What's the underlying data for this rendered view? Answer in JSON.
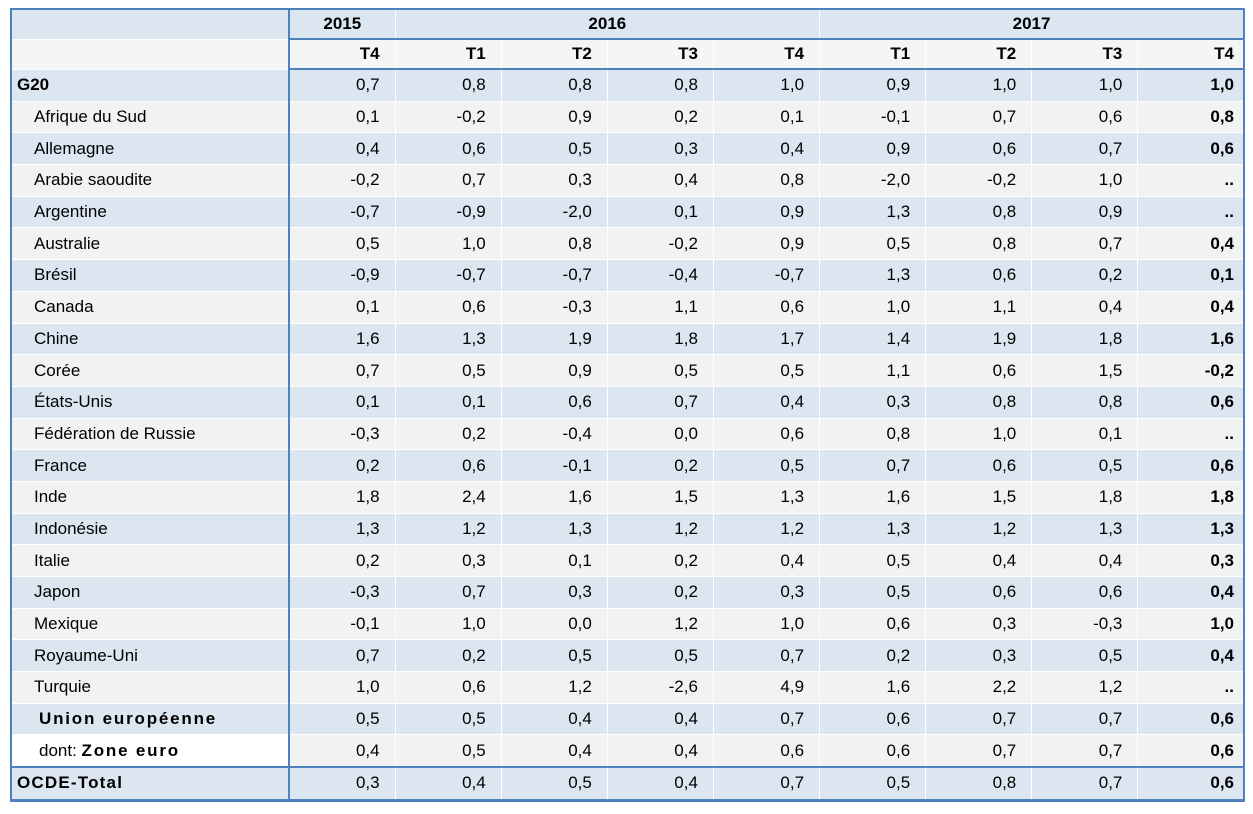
{
  "colors": {
    "table_border": "#4f81bd",
    "row_blue": "#dce6f1",
    "row_light": "#f2f2f2",
    "quarter_header_bg": "#f5f5f6",
    "special_label_bg": "#ffffff",
    "text": "#000000"
  },
  "chart_data": {
    "type": "table",
    "title": "",
    "missing_marker": "..",
    "decimal_separator": ",",
    "year_groups": [
      {
        "label": "2015",
        "span": 1
      },
      {
        "label": "2016",
        "span": 4
      },
      {
        "label": "2017",
        "span": 4
      }
    ],
    "quarters": [
      "T4",
      "T1",
      "T2",
      "T3",
      "T4",
      "T1",
      "T2",
      "T3",
      "T4"
    ],
    "last_column_bold": true,
    "rows": [
      {
        "label": "G20",
        "style": "group",
        "values": [
          "0,7",
          "0,8",
          "0,8",
          "0,8",
          "1,0",
          "0,9",
          "1,0",
          "1,0",
          "1,0"
        ]
      },
      {
        "label": "Afrique du Sud",
        "style": "country",
        "values": [
          "0,1",
          "-0,2",
          "0,9",
          "0,2",
          "0,1",
          "-0,1",
          "0,7",
          "0,6",
          "0,8"
        ]
      },
      {
        "label": "Allemagne",
        "style": "country",
        "values": [
          "0,4",
          "0,6",
          "0,5",
          "0,3",
          "0,4",
          "0,9",
          "0,6",
          "0,7",
          "0,6"
        ]
      },
      {
        "label": "Arabie saoudite",
        "style": "country",
        "values": [
          "-0,2",
          "0,7",
          "0,3",
          "0,4",
          "0,8",
          "-2,0",
          "-0,2",
          "1,0",
          ".."
        ]
      },
      {
        "label": "Argentine",
        "style": "country",
        "values": [
          "-0,7",
          "-0,9",
          "-2,0",
          "0,1",
          "0,9",
          "1,3",
          "0,8",
          "0,9",
          ".."
        ]
      },
      {
        "label": "Australie",
        "style": "country",
        "values": [
          "0,5",
          "1,0",
          "0,8",
          "-0,2",
          "0,9",
          "0,5",
          "0,8",
          "0,7",
          "0,4"
        ]
      },
      {
        "label": "Brésil",
        "style": "country",
        "values": [
          "-0,9",
          "-0,7",
          "-0,7",
          "-0,4",
          "-0,7",
          "1,3",
          "0,6",
          "0,2",
          "0,1"
        ]
      },
      {
        "label": "Canada",
        "style": "country",
        "values": [
          "0,1",
          "0,6",
          "-0,3",
          "1,1",
          "0,6",
          "1,0",
          "1,1",
          "0,4",
          "0,4"
        ]
      },
      {
        "label": "Chine",
        "style": "country",
        "values": [
          "1,6",
          "1,3",
          "1,9",
          "1,8",
          "1,7",
          "1,4",
          "1,9",
          "1,8",
          "1,6"
        ]
      },
      {
        "label": "Corée",
        "style": "country",
        "values": [
          "0,7",
          "0,5",
          "0,9",
          "0,5",
          "0,5",
          "1,1",
          "0,6",
          "1,5",
          "-0,2"
        ]
      },
      {
        "label": "États-Unis",
        "style": "country",
        "values": [
          "0,1",
          "0,1",
          "0,6",
          "0,7",
          "0,4",
          "0,3",
          "0,8",
          "0,8",
          "0,6"
        ]
      },
      {
        "label": "Fédération de Russie",
        "style": "country",
        "values": [
          "-0,3",
          "0,2",
          "-0,4",
          "0,0",
          "0,6",
          "0,8",
          "1,0",
          "0,1",
          ".."
        ]
      },
      {
        "label": "France",
        "style": "country",
        "values": [
          "0,2",
          "0,6",
          "-0,1",
          "0,2",
          "0,5",
          "0,7",
          "0,6",
          "0,5",
          "0,6"
        ]
      },
      {
        "label": "Inde",
        "style": "country",
        "values": [
          "1,8",
          "2,4",
          "1,6",
          "1,5",
          "1,3",
          "1,6",
          "1,5",
          "1,8",
          "1,8"
        ]
      },
      {
        "label": "Indonésie",
        "style": "country",
        "values": [
          "1,3",
          "1,2",
          "1,3",
          "1,2",
          "1,2",
          "1,3",
          "1,2",
          "1,3",
          "1,3"
        ]
      },
      {
        "label": "Italie",
        "style": "country",
        "values": [
          "0,2",
          "0,3",
          "0,1",
          "0,2",
          "0,4",
          "0,5",
          "0,4",
          "0,4",
          "0,3"
        ]
      },
      {
        "label": "Japon",
        "style": "country",
        "values": [
          "-0,3",
          "0,7",
          "0,3",
          "0,2",
          "0,3",
          "0,5",
          "0,6",
          "0,6",
          "0,4"
        ]
      },
      {
        "label": "Mexique",
        "style": "country",
        "values": [
          "-0,1",
          "1,0",
          "0,0",
          "1,2",
          "1,0",
          "0,6",
          "0,3",
          "-0,3",
          "1,0"
        ]
      },
      {
        "label": "Royaume-Uni",
        "style": "country",
        "values": [
          "0,7",
          "0,2",
          "0,5",
          "0,5",
          "0,7",
          "0,2",
          "0,3",
          "0,5",
          "0,4"
        ]
      },
      {
        "label": "Turquie",
        "style": "country",
        "values": [
          "1,0",
          "0,6",
          "1,2",
          "-2,6",
          "4,9",
          "1,6",
          "2,2",
          "1,2",
          ".."
        ]
      },
      {
        "label": "Union européenne",
        "style": "eu",
        "values": [
          "0,5",
          "0,5",
          "0,4",
          "0,4",
          "0,7",
          "0,6",
          "0,7",
          "0,7",
          "0,6"
        ]
      },
      {
        "label_prefix": "dont: ",
        "label": "Zone euro",
        "style": "dont",
        "values": [
          "0,4",
          "0,5",
          "0,4",
          "0,4",
          "0,6",
          "0,6",
          "0,7",
          "0,7",
          "0,6"
        ]
      },
      {
        "label": "OCDE-Total",
        "style": "total",
        "topline": true,
        "values": [
          "0,3",
          "0,4",
          "0,5",
          "0,4",
          "0,7",
          "0,5",
          "0,8",
          "0,7",
          "0,6"
        ]
      }
    ]
  }
}
